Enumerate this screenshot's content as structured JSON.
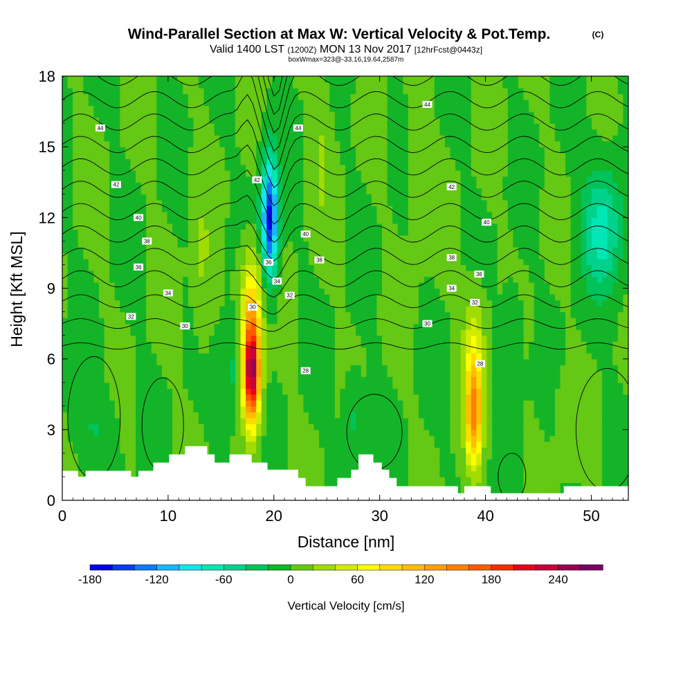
{
  "chart_data": {
    "type": "heatmap",
    "title": "Wind-Parallel Section at Max W: Vertical Velocity & Pot.Temp.",
    "copyright": "(C)",
    "subtitle_main": "Valid 1400 LST",
    "subtitle_utc": "(1200Z)",
    "subtitle_date": "MON 13 Nov 2017",
    "subtitle_forecast": "[12hrFcst@0443z]",
    "info_line": "boxWmax=323@-33.16,19.64,2587m",
    "xlabel": "Distance [nm]",
    "ylabel": "Height [Kft MSL]",
    "xlim": [
      0,
      53.5
    ],
    "ylim": [
      0,
      18
    ],
    "xticks": [
      "0",
      "10",
      "20",
      "30",
      "40",
      "50"
    ],
    "yticks": [
      "0",
      "3",
      "6",
      "9",
      "12",
      "15",
      "18"
    ],
    "colorbar": {
      "label": "Vertical Velocity [cm/s]",
      "min": -180,
      "step": 20,
      "ticks": [
        "-180",
        "-120",
        "-60",
        "0",
        "60",
        "120",
        "180",
        "240"
      ],
      "colors": [
        "#0000e6",
        "#0a3cf0",
        "#1478f5",
        "#1eb4fa",
        "#14e6e6",
        "#00e6b4",
        "#00d28c",
        "#00c35a",
        "#14b428",
        "#64c814",
        "#a0dc00",
        "#d2ec00",
        "#ffff00",
        "#ffdc00",
        "#ffbe00",
        "#ffa000",
        "#ff8200",
        "#ff5a00",
        "#ff2800",
        "#e6001e",
        "#c3003c",
        "#960050",
        "#780064"
      ]
    },
    "updrafts": [
      {
        "x": 17.9,
        "z": 5.5,
        "peak": 255
      },
      {
        "x": 38.9,
        "z": 3.8,
        "peak": 150
      }
    ],
    "downdrafts": [
      {
        "x": 19.6,
        "z": 12.0,
        "peak": -170
      },
      {
        "x": 51.0,
        "z": 11.5,
        "peak": -70
      }
    ],
    "theta_contours": [
      "28",
      "30",
      "32",
      "34",
      "36",
      "38",
      "40",
      "42",
      "44"
    ],
    "contour_labels": [
      {
        "text": "44",
        "x": 3.6,
        "z": 15.8
      },
      {
        "text": "44",
        "x": 22.3,
        "z": 15.8
      },
      {
        "text": "44",
        "x": 34.5,
        "z": 16.8
      },
      {
        "text": "42",
        "x": 5.1,
        "z": 13.4
      },
      {
        "text": "42",
        "x": 18.4,
        "z": 13.6
      },
      {
        "text": "42",
        "x": 36.8,
        "z": 13.3
      },
      {
        "text": "40",
        "x": 7.2,
        "z": 12.0
      },
      {
        "text": "40",
        "x": 23.0,
        "z": 11.3
      },
      {
        "text": "40",
        "x": 40.1,
        "z": 11.8
      },
      {
        "text": "38",
        "x": 8.0,
        "z": 11.0
      },
      {
        "text": "38",
        "x": 24.3,
        "z": 10.2
      },
      {
        "text": "38",
        "x": 36.8,
        "z": 10.3
      },
      {
        "text": "36",
        "x": 7.2,
        "z": 9.9
      },
      {
        "text": "36",
        "x": 19.5,
        "z": 10.1
      },
      {
        "text": "36",
        "x": 39.4,
        "z": 9.6
      },
      {
        "text": "34",
        "x": 10.0,
        "z": 8.8
      },
      {
        "text": "34",
        "x": 20.3,
        "z": 9.3
      },
      {
        "text": "34",
        "x": 36.8,
        "z": 9.0
      },
      {
        "text": "32",
        "x": 6.5,
        "z": 7.8
      },
      {
        "text": "32",
        "x": 21.5,
        "z": 8.7
      },
      {
        "text": "32",
        "x": 39.0,
        "z": 8.4
      },
      {
        "text": "30",
        "x": 18.0,
        "z": 8.2
      },
      {
        "text": "30",
        "x": 11.6,
        "z": 7.4
      },
      {
        "text": "30",
        "x": 34.5,
        "z": 7.5
      },
      {
        "text": "28",
        "x": 23.0,
        "z": 5.5
      },
      {
        "text": "28",
        "x": 39.5,
        "z": 5.8
      }
    ],
    "terrain": [
      {
        "x": 0,
        "z": 1.25
      },
      {
        "x": 1.5,
        "z": 1.25
      },
      {
        "x": 1.5,
        "z": 1.0
      },
      {
        "x": 2.2,
        "z": 1.0
      },
      {
        "x": 2.2,
        "z": 1.25
      },
      {
        "x": 6.5,
        "z": 1.25
      },
      {
        "x": 6.5,
        "z": 1.0
      },
      {
        "x": 7.2,
        "z": 1.0
      },
      {
        "x": 7.2,
        "z": 1.25
      },
      {
        "x": 8.6,
        "z": 1.25
      },
      {
        "x": 8.6,
        "z": 1.6
      },
      {
        "x": 10.1,
        "z": 1.6
      },
      {
        "x": 10.1,
        "z": 1.95
      },
      {
        "x": 11.6,
        "z": 1.95
      },
      {
        "x": 11.6,
        "z": 2.3
      },
      {
        "x": 13.7,
        "z": 2.3
      },
      {
        "x": 13.7,
        "z": 1.95
      },
      {
        "x": 14.4,
        "z": 1.95
      },
      {
        "x": 14.4,
        "z": 1.6
      },
      {
        "x": 15.8,
        "z": 1.6
      },
      {
        "x": 15.8,
        "z": 1.95
      },
      {
        "x": 17.9,
        "z": 1.95
      },
      {
        "x": 17.9,
        "z": 1.6
      },
      {
        "x": 19.4,
        "z": 1.6
      },
      {
        "x": 19.4,
        "z": 1.3
      },
      {
        "x": 22.3,
        "z": 1.3
      },
      {
        "x": 22.3,
        "z": 0.95
      },
      {
        "x": 23.0,
        "z": 0.95
      },
      {
        "x": 23.0,
        "z": 0.6
      },
      {
        "x": 26.0,
        "z": 0.6
      },
      {
        "x": 26.0,
        "z": 0.95
      },
      {
        "x": 27.3,
        "z": 0.95
      },
      {
        "x": 27.3,
        "z": 1.3
      },
      {
        "x": 28.0,
        "z": 1.3
      },
      {
        "x": 28.0,
        "z": 1.95
      },
      {
        "x": 29.4,
        "z": 1.95
      },
      {
        "x": 29.4,
        "z": 1.6
      },
      {
        "x": 30.2,
        "z": 1.6
      },
      {
        "x": 30.2,
        "z": 1.3
      },
      {
        "x": 30.9,
        "z": 1.3
      },
      {
        "x": 30.9,
        "z": 0.95
      },
      {
        "x": 31.6,
        "z": 0.95
      },
      {
        "x": 31.6,
        "z": 0.6
      },
      {
        "x": 37.4,
        "z": 0.6
      },
      {
        "x": 37.4,
        "z": 0.3
      },
      {
        "x": 38.0,
        "z": 0.3
      },
      {
        "x": 38.0,
        "z": 0.6
      },
      {
        "x": 40.5,
        "z": 0.6
      },
      {
        "x": 40.5,
        "z": 0.3
      },
      {
        "x": 47.4,
        "z": 0.3
      },
      {
        "x": 47.4,
        "z": 0.6
      },
      {
        "x": 53.5,
        "z": 0.6
      }
    ]
  }
}
